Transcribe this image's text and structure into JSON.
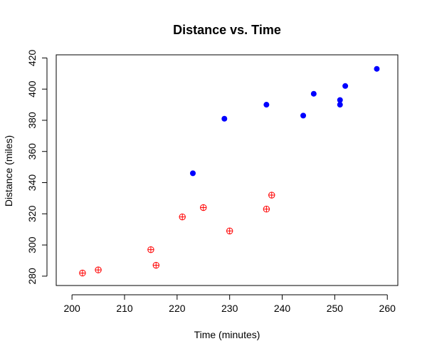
{
  "chart_data": {
    "type": "scatter",
    "title": "Distance vs. Time",
    "xlabel": "Time (minutes)",
    "ylabel": "Distance (miles)",
    "xlim": [
      197,
      262
    ],
    "ylim": [
      274,
      422
    ],
    "x_ticks": [
      200,
      210,
      220,
      230,
      240,
      250,
      260
    ],
    "y_ticks": [
      280,
      300,
      320,
      340,
      360,
      380,
      400,
      420
    ],
    "grid": false,
    "series": [
      {
        "color": "#0000ff",
        "marker": "filled-circle",
        "points": [
          {
            "x": 223,
            "y": 346
          },
          {
            "x": 229,
            "y": 381
          },
          {
            "x": 237,
            "y": 390
          },
          {
            "x": 244,
            "y": 383
          },
          {
            "x": 246,
            "y": 397
          },
          {
            "x": 251,
            "y": 393
          },
          {
            "x": 251,
            "y": 390
          },
          {
            "x": 252,
            "y": 402
          },
          {
            "x": 258,
            "y": 413
          }
        ]
      },
      {
        "color": "#ff0000",
        "marker": "circle-plus",
        "points": [
          {
            "x": 202,
            "y": 282
          },
          {
            "x": 205,
            "y": 284
          },
          {
            "x": 215,
            "y": 297
          },
          {
            "x": 216,
            "y": 287
          },
          {
            "x": 221,
            "y": 318
          },
          {
            "x": 225,
            "y": 324
          },
          {
            "x": 230,
            "y": 309
          },
          {
            "x": 237,
            "y": 323
          },
          {
            "x": 238,
            "y": 332
          }
        ]
      }
    ]
  }
}
